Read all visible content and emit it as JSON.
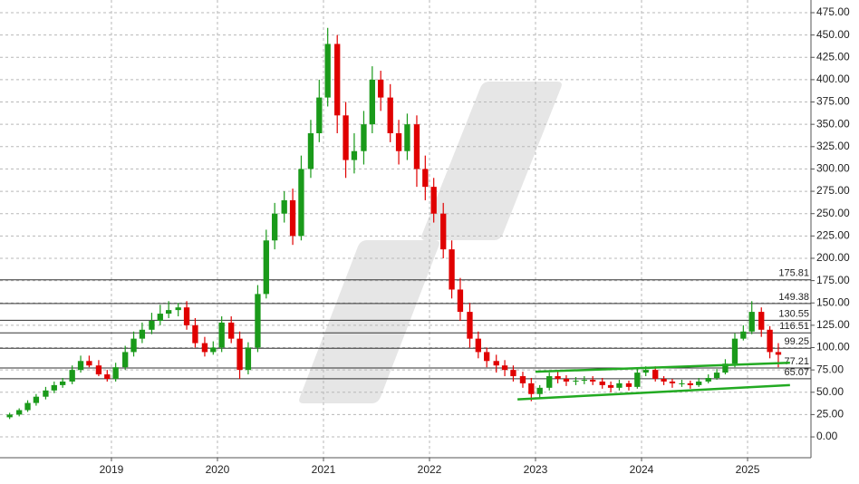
{
  "chart_data": {
    "type": "candlestick",
    "x": [
      2018.04,
      2018.13,
      2018.21,
      2018.29,
      2018.38,
      2018.46,
      2018.54,
      2018.63,
      2018.71,
      2018.79,
      2018.88,
      2018.96,
      2019.04,
      2019.13,
      2019.21,
      2019.29,
      2019.38,
      2019.46,
      2019.54,
      2019.63,
      2019.71,
      2019.79,
      2019.88,
      2019.96,
      2020.04,
      2020.13,
      2020.21,
      2020.29,
      2020.38,
      2020.46,
      2020.54,
      2020.63,
      2020.71,
      2020.79,
      2020.88,
      2020.96,
      2021.04,
      2021.13,
      2021.21,
      2021.29,
      2021.38,
      2021.46,
      2021.54,
      2021.63,
      2021.71,
      2021.79,
      2021.88,
      2021.96,
      2022.04,
      2022.13,
      2022.21,
      2022.29,
      2022.38,
      2022.46,
      2022.54,
      2022.63,
      2022.71,
      2022.79,
      2022.88,
      2022.96,
      2023.04,
      2023.13,
      2023.21,
      2023.29,
      2023.38,
      2023.46,
      2023.54,
      2023.63,
      2023.71,
      2023.79,
      2023.88,
      2023.96,
      2024.04,
      2024.13,
      2024.21,
      2024.29,
      2024.38,
      2024.46,
      2024.54,
      2024.63,
      2024.71,
      2024.79,
      2024.88,
      2024.96,
      2025.04,
      2025.13,
      2025.21,
      2025.29
    ],
    "open": [
      22,
      25,
      30,
      38,
      45,
      52,
      58,
      62,
      75,
      85,
      80,
      70,
      65,
      78,
      95,
      110,
      120,
      130,
      138,
      142,
      145,
      125,
      105,
      95,
      100,
      128,
      110,
      75,
      100,
      160,
      220,
      250,
      265,
      225,
      300,
      340,
      380,
      440,
      360,
      310,
      320,
      350,
      400,
      380,
      340,
      320,
      350,
      300,
      280,
      250,
      210,
      165,
      140,
      110,
      95,
      85,
      80,
      75,
      68,
      60,
      48,
      55,
      68,
      65,
      62,
      63,
      64,
      62,
      58,
      55,
      60,
      56,
      72,
      75,
      65,
      62,
      60,
      60,
      58,
      62,
      66,
      72,
      82,
      110,
      118,
      140,
      120,
      95
    ],
    "high": [
      27,
      32,
      41,
      48,
      56,
      62,
      66,
      80,
      91,
      91,
      86,
      75,
      83,
      102,
      118,
      128,
      139,
      148,
      152,
      150,
      152,
      133,
      112,
      107,
      135,
      135,
      118,
      106,
      170,
      232,
      262,
      275,
      278,
      315,
      355,
      400,
      458,
      450,
      375,
      340,
      365,
      415,
      410,
      395,
      355,
      362,
      360,
      315,
      290,
      262,
      220,
      178,
      150,
      118,
      100,
      92,
      86,
      80,
      73,
      66,
      58,
      72,
      73,
      69,
      67,
      68,
      68,
      66,
      62,
      64,
      63,
      76,
      79,
      79,
      68,
      65,
      64,
      63,
      66,
      70,
      76,
      87,
      116,
      125,
      152,
      145,
      124,
      105
    ],
    "low": [
      20,
      23,
      28,
      35,
      42,
      49,
      55,
      59,
      72,
      78,
      68,
      62,
      62,
      75,
      90,
      105,
      115,
      125,
      133,
      135,
      120,
      100,
      90,
      92,
      95,
      105,
      65,
      70,
      95,
      155,
      210,
      240,
      215,
      220,
      290,
      330,
      370,
      340,
      290,
      295,
      305,
      340,
      365,
      330,
      305,
      310,
      280,
      265,
      240,
      200,
      155,
      130,
      100,
      88,
      78,
      72,
      68,
      62,
      55,
      40,
      44,
      52,
      60,
      57,
      58,
      59,
      58,
      54,
      50,
      52,
      52,
      54,
      68,
      62,
      58,
      55,
      56,
      54,
      56,
      60,
      64,
      70,
      78,
      108,
      115,
      112,
      88,
      78
    ],
    "close": [
      25,
      30,
      38,
      45,
      52,
      58,
      62,
      75,
      85,
      80,
      70,
      65,
      78,
      95,
      110,
      120,
      130,
      138,
      142,
      145,
      125,
      105,
      95,
      100,
      128,
      110,
      75,
      100,
      160,
      220,
      250,
      265,
      225,
      300,
      340,
      380,
      440,
      360,
      310,
      320,
      350,
      400,
      380,
      340,
      320,
      350,
      300,
      280,
      250,
      210,
      165,
      140,
      110,
      95,
      85,
      80,
      75,
      68,
      60,
      48,
      55,
      68,
      65,
      62,
      63,
      64,
      62,
      58,
      55,
      60,
      56,
      72,
      75,
      65,
      62,
      60,
      60,
      58,
      62,
      66,
      72,
      82,
      110,
      118,
      140,
      120,
      95,
      92
    ],
    "up_color": "#1a9a1a",
    "down_color": "#e00000",
    "xlim": [
      2017.949,
      2025.598
    ],
    "xticks": [
      2019,
      2020,
      2021,
      2022,
      2023,
      2024,
      2025
    ],
    "ylim": [
      -23.3,
      489.2
    ],
    "yticks": [
      {
        "value": 0,
        "label": "0.00"
      },
      {
        "value": 25,
        "label": "25.00"
      },
      {
        "value": 50,
        "label": "50.00"
      },
      {
        "value": 75,
        "label": "75.00"
      },
      {
        "value": 100,
        "label": "100.00"
      },
      {
        "value": 125,
        "label": "125.00"
      },
      {
        "value": 150,
        "label": "150.00"
      },
      {
        "value": 175,
        "label": "175.00"
      },
      {
        "value": 200,
        "label": "200.00"
      },
      {
        "value": 225,
        "label": "225.00"
      },
      {
        "value": 250,
        "label": "250.00"
      },
      {
        "value": 275,
        "label": "275.00"
      },
      {
        "value": 300,
        "label": "300.00"
      },
      {
        "value": 325,
        "label": "325.00"
      },
      {
        "value": 350,
        "label": "350.00"
      },
      {
        "value": 375,
        "label": "375.00"
      },
      {
        "value": 400,
        "label": "400.00"
      },
      {
        "value": 425,
        "label": "425.00"
      },
      {
        "value": 450,
        "label": "450.00"
      },
      {
        "value": 475,
        "label": "475.00"
      }
    ],
    "grid": true,
    "levels": [
      175.81,
      149.38,
      130.55,
      116.51,
      99.25,
      77.21,
      65.07
    ],
    "level_color": "#333333",
    "trendlines": [
      {
        "x": [
          2022.83,
          2025.4
        ],
        "y": [
          42,
          58
        ]
      },
      {
        "x": [
          2023.0,
          2025.4
        ],
        "y": [
          73,
          83
        ]
      }
    ],
    "trendline_color": "#22aa22"
  }
}
